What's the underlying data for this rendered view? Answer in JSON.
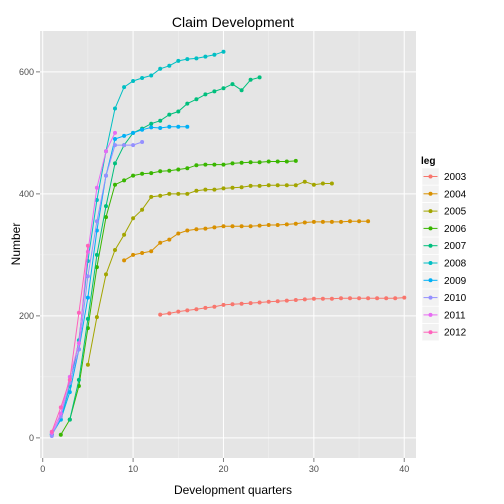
{
  "chart_data": {
    "type": "line",
    "title": "Claim Development",
    "xlabel": "Development quarters",
    "ylabel": "Number",
    "xlim": [
      -0.3,
      41.3
    ],
    "ylim": [
      -33,
      667
    ],
    "x_ticks": [
      0,
      10,
      20,
      30,
      40
    ],
    "y_ticks": [
      0,
      200,
      400,
      600
    ],
    "grid": true,
    "legend_position": "right",
    "legend_title": "leg",
    "series": [
      {
        "name": "2003",
        "color": "#F8766D",
        "x": [
          13,
          14,
          15,
          16,
          17,
          18,
          19,
          20,
          21,
          22,
          23,
          24,
          25,
          26,
          27,
          28,
          29,
          30,
          31,
          32,
          33,
          34,
          35,
          36,
          37,
          38,
          39,
          40
        ],
        "y": [
          202,
          204,
          207,
          209,
          211,
          213,
          215,
          218,
          219,
          220,
          221,
          222,
          223,
          224,
          225,
          226,
          227,
          228,
          228,
          228,
          229,
          229,
          229,
          229,
          229,
          229,
          229,
          230
        ]
      },
      {
        "name": "2004",
        "color": "#D89000",
        "x": [
          9,
          10,
          11,
          12,
          13,
          14,
          15,
          16,
          17,
          18,
          19,
          20,
          21,
          22,
          23,
          24,
          25,
          26,
          27,
          28,
          29,
          30,
          31,
          32,
          33,
          34,
          35,
          36
        ],
        "y": [
          291,
          300,
          303,
          306,
          320,
          325,
          335,
          340,
          342,
          343,
          345,
          347,
          347,
          347,
          347,
          348,
          349,
          349,
          350,
          351,
          353,
          354,
          354,
          354,
          354,
          355,
          355,
          355
        ]
      },
      {
        "name": "2005",
        "color": "#A3A500",
        "x": [
          5,
          6,
          7,
          8,
          9,
          10,
          11,
          12,
          13,
          14,
          15,
          16,
          17,
          18,
          19,
          20,
          21,
          22,
          23,
          24,
          25,
          26,
          27,
          28,
          29,
          30,
          31,
          32
        ],
        "y": [
          120,
          198,
          268,
          308,
          333,
          360,
          374,
          395,
          397,
          400,
          400,
          400,
          405,
          407,
          407,
          409,
          410,
          411,
          413,
          413,
          414,
          414,
          414,
          414,
          420,
          415,
          417,
          417
        ]
      },
      {
        "name": "2006",
        "color": "#39B600",
        "x": [
          2,
          3,
          4,
          5,
          6,
          7,
          8,
          9,
          10,
          11,
          12,
          13,
          14,
          15,
          16,
          17,
          18,
          19,
          20,
          21,
          22,
          23,
          24,
          25,
          26,
          27,
          28
        ],
        "y": [
          5,
          30,
          85,
          180,
          280,
          362,
          415,
          422,
          430,
          433,
          434,
          437,
          438,
          440,
          442,
          447,
          448,
          448,
          448,
          450,
          451,
          452,
          452,
          453,
          453,
          453,
          454
        ]
      },
      {
        "name": "2007",
        "color": "#00BF7D",
        "x": [
          3,
          4,
          5,
          6,
          7,
          8,
          9,
          10,
          11,
          12,
          13,
          14,
          15,
          16,
          17,
          18,
          19,
          20,
          21,
          22,
          23,
          24
        ],
        "y": [
          30,
          95,
          195,
          300,
          380,
          450,
          480,
          500,
          507,
          515,
          520,
          530,
          535,
          548,
          555,
          563,
          568,
          573,
          580,
          570,
          587,
          591
        ]
      },
      {
        "name": "2008",
        "color": "#00BFC4",
        "x": [
          1,
          2,
          3,
          4,
          5,
          6,
          7,
          8,
          9,
          10,
          11,
          12,
          13,
          14,
          15,
          16,
          17,
          18,
          19,
          20
        ],
        "y": [
          5,
          30,
          85,
          160,
          290,
          390,
          470,
          540,
          575,
          585,
          590,
          594,
          605,
          610,
          618,
          621,
          622,
          625,
          628,
          633
        ]
      },
      {
        "name": "2009",
        "color": "#00B0F6",
        "x": [
          1,
          2,
          3,
          4,
          5,
          6,
          7,
          8,
          9,
          10,
          11,
          12,
          13,
          14,
          15,
          16
        ],
        "y": [
          6,
          30,
          75,
          145,
          230,
          340,
          430,
          490,
          495,
          500,
          505,
          509,
          508,
          510,
          510,
          510
        ]
      },
      {
        "name": "2010",
        "color": "#9590FF",
        "x": [
          1,
          2,
          3,
          4,
          5,
          6,
          7,
          8,
          9,
          10,
          11
        ],
        "y": [
          3,
          35,
          90,
          145,
          265,
          355,
          430,
          480,
          480,
          480,
          485
        ]
      },
      {
        "name": "2011",
        "color": "#E76BF3",
        "x": [
          1,
          2,
          3,
          4,
          5,
          6,
          7,
          8
        ],
        "y": [
          8,
          40,
          100,
          155,
          305,
          410,
          470,
          500
        ]
      },
      {
        "name": "2012",
        "color": "#FF62BC",
        "x": [
          1,
          2,
          3,
          4,
          5
        ],
        "y": [
          10,
          50,
          95,
          205,
          315
        ]
      }
    ]
  }
}
